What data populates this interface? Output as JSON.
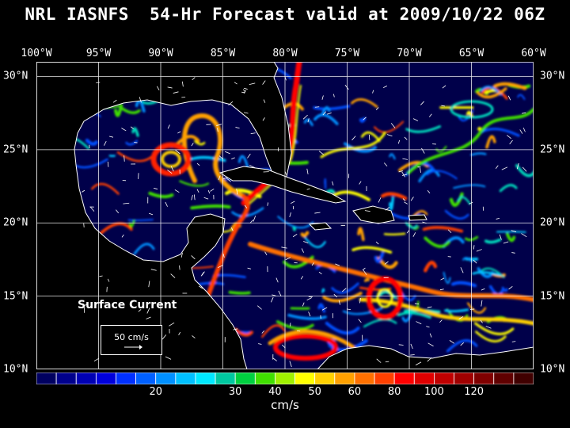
{
  "title": "NRL IASNFS  54-Hr Forecast valid at 2009/10/22 06Z",
  "axes": {
    "lon_labels": [
      "100°W",
      "95°W",
      "90°W",
      "85°W",
      "80°W",
      "75°W",
      "70°W",
      "65°W",
      "60°W"
    ],
    "lat_labels": [
      "30°N",
      "25°N",
      "20°N",
      "15°N",
      "10°N"
    ]
  },
  "map": {
    "extent": {
      "lon_min": -100,
      "lon_max": -60,
      "lat_min": 10,
      "lat_max": 31
    },
    "field": "surface current speed",
    "features": [
      "gulf-of-mexico-loop-current-eddy",
      "florida-current",
      "caribbean-current",
      "anticyclonic-eddy-caribbean",
      "coastlines",
      "velocity-vectors"
    ],
    "colors": {
      "ocean_bg": "#00004a",
      "land": "#000000",
      "coastline": "#ffffff",
      "grid": "#ffffff"
    }
  },
  "annotation": {
    "label": "Surface Current",
    "reference_vector": "50 cm/s"
  },
  "colorbar": {
    "ticks": [
      "20",
      "30",
      "40",
      "50",
      "60",
      "80",
      "100",
      "120"
    ],
    "unit": "cm/s",
    "colors": [
      "#000060",
      "#00008c",
      "#0000b4",
      "#0000dc",
      "#0030ff",
      "#0060ff",
      "#0090ff",
      "#00c0ff",
      "#00e8ff",
      "#00c8a0",
      "#00d040",
      "#40e000",
      "#a0f000",
      "#ffff00",
      "#ffd000",
      "#ffa000",
      "#ff7000",
      "#ff4000",
      "#ff0000",
      "#e00000",
      "#c00000",
      "#a00000",
      "#800000",
      "#600000",
      "#400000"
    ]
  }
}
